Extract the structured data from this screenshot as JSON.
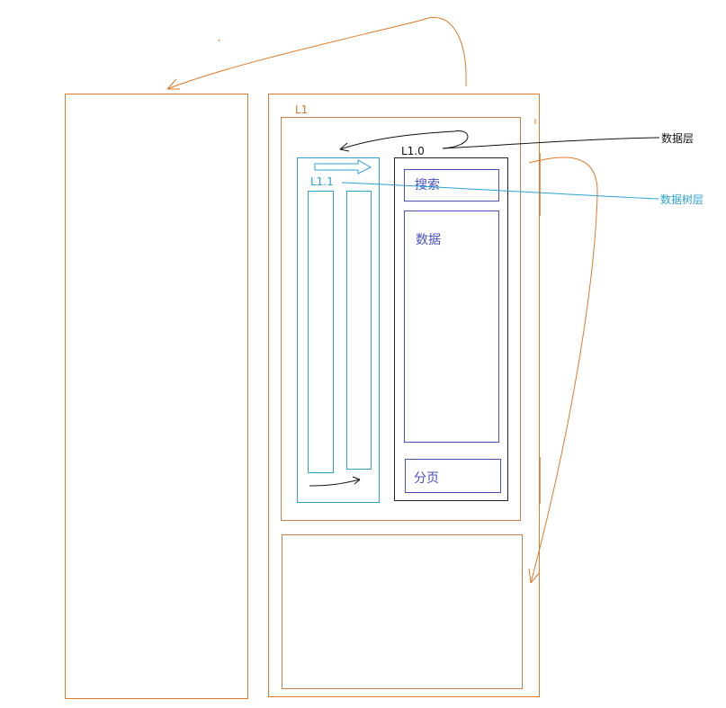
{
  "labels": {
    "l1": "L1",
    "l1_0": "L1.0",
    "l1_1": "L1.1",
    "search": "搜索",
    "data": "数据",
    "pagination": "分页",
    "data_layer": "数据层",
    "data_tree_layer": "数据树层"
  },
  "colors": {
    "orange": "#e07a28",
    "blue": "#2aa3d2",
    "black": "#222222",
    "indigo": "#4a4fc0"
  }
}
